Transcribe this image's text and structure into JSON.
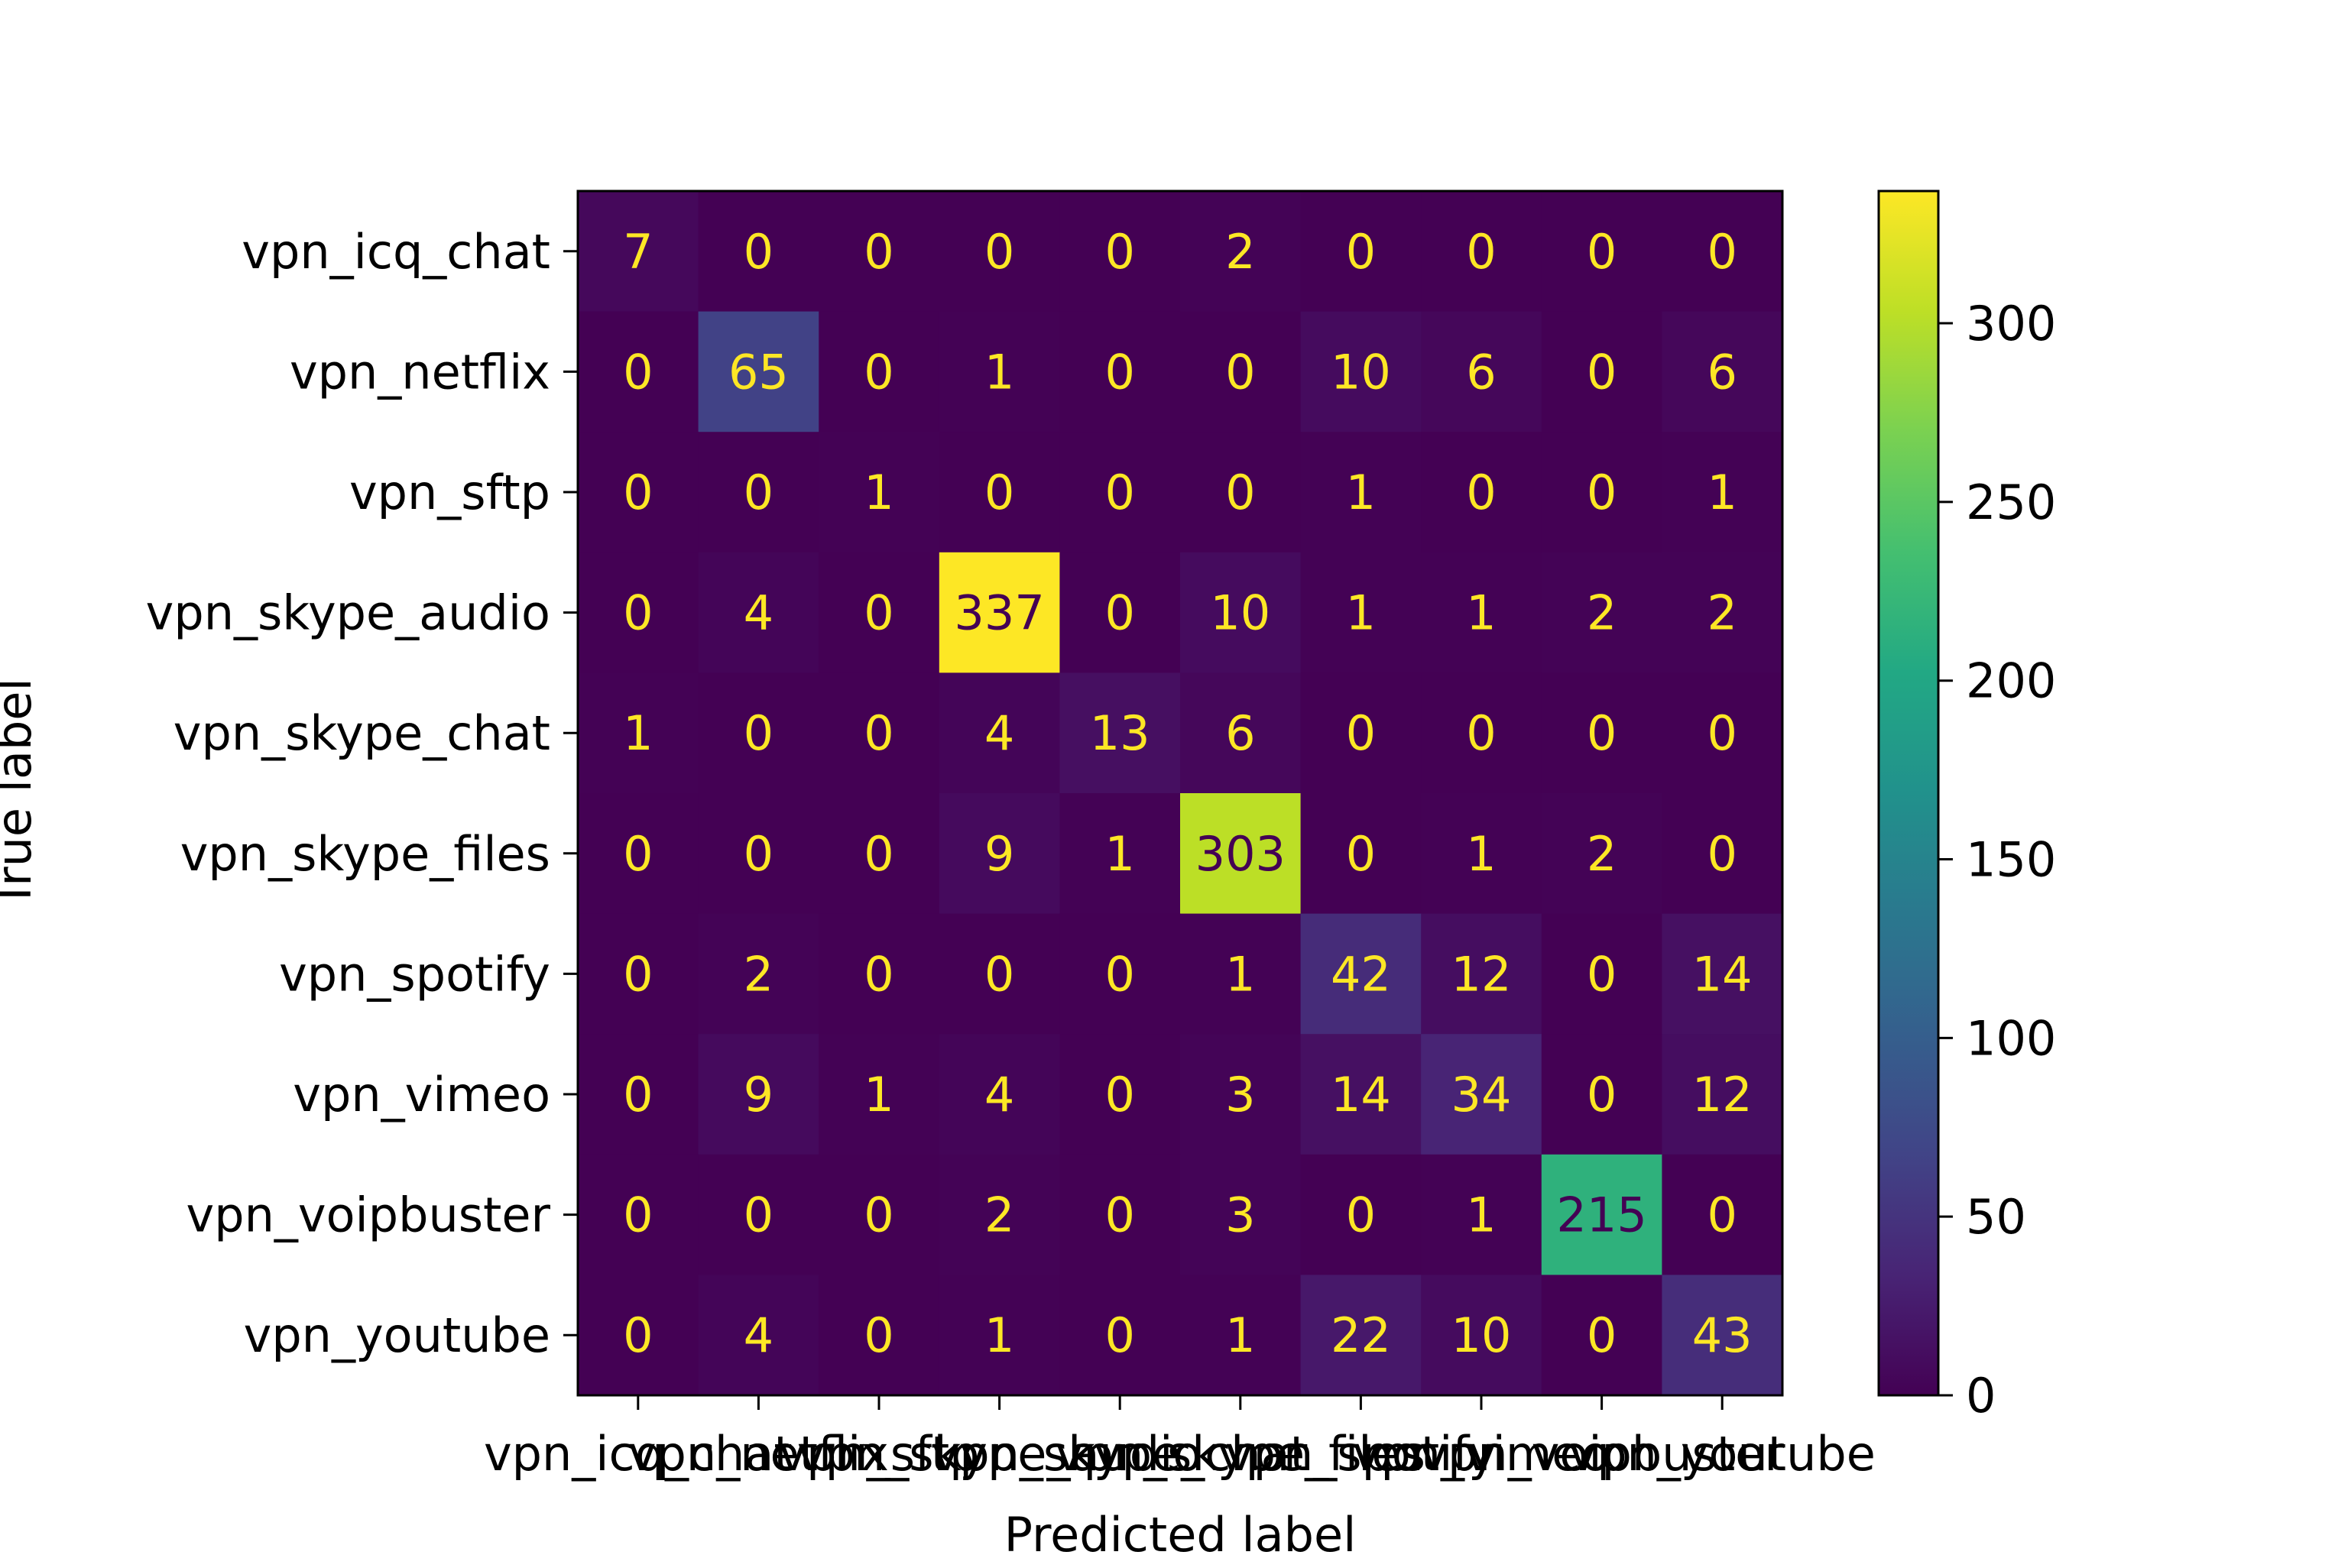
{
  "chart_data": {
    "type": "heatmap",
    "title": "",
    "xlabel": "Predicted label",
    "ylabel": "True label",
    "row_labels": [
      "vpn_icq_chat",
      "vpn_netflix",
      "vpn_sftp",
      "vpn_skype_audio",
      "vpn_skype_chat",
      "vpn_skype_files",
      "vpn_spotify",
      "vpn_vimeo",
      "vpn_voipbuster",
      "vpn_youtube"
    ],
    "col_labels": [
      "vpn_icq_chat",
      "vpn_netflix",
      "vpn_sftp",
      "vpn_skype_audio",
      "vpn_skype_chat",
      "vpn_skype_files",
      "vpn_spotify",
      "vpn_vimeo",
      "vpn_voipbuster",
      "vpn_youtube"
    ],
    "values": [
      [
        7,
        0,
        0,
        0,
        0,
        2,
        0,
        0,
        0,
        0
      ],
      [
        0,
        65,
        0,
        1,
        0,
        0,
        10,
        6,
        0,
        6
      ],
      [
        0,
        0,
        1,
        0,
        0,
        0,
        1,
        0,
        0,
        1
      ],
      [
        0,
        4,
        0,
        337,
        0,
        10,
        1,
        1,
        2,
        2
      ],
      [
        1,
        0,
        0,
        4,
        13,
        6,
        0,
        0,
        0,
        0
      ],
      [
        0,
        0,
        0,
        9,
        1,
        303,
        0,
        1,
        2,
        0
      ],
      [
        0,
        2,
        0,
        0,
        0,
        1,
        42,
        12,
        0,
        14
      ],
      [
        0,
        9,
        1,
        4,
        0,
        3,
        14,
        34,
        0,
        12
      ],
      [
        0,
        0,
        0,
        2,
        0,
        3,
        0,
        1,
        215,
        0
      ],
      [
        0,
        4,
        0,
        1,
        0,
        1,
        22,
        10,
        0,
        43
      ]
    ],
    "colormap": "viridis",
    "vmin": 0,
    "vmax": 337,
    "colorbar_ticks": [
      0,
      50,
      100,
      150,
      200,
      250,
      300
    ],
    "text_color_light": "#fde725",
    "text_color_dark": "#440154",
    "grid": false
  }
}
